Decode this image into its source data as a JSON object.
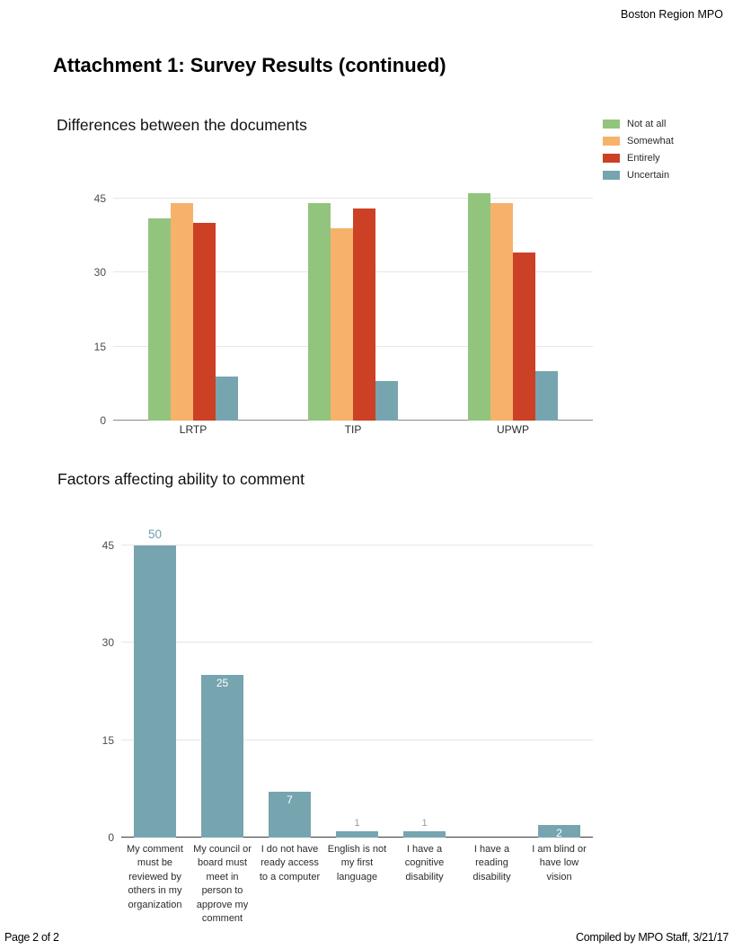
{
  "header": {
    "right_text": "Boston Region MPO"
  },
  "page_title": "Attachment 1: Survey Results (continued)",
  "footer": {
    "left_text": "Page 2 of 2",
    "right_text": "Compiled by MPO Staff, 3/21/17"
  },
  "palette": {
    "green": "#93c47d",
    "orange": "#f6b26b",
    "red": "#cc4125",
    "blue_gray": "#76a5af",
    "gridline": "#e6e6e6",
    "axis_baseline_chart1": "#8a8a8a",
    "axis_baseline_chart2": "#3a3a3a",
    "value_label_inside": "#ffffff",
    "value_label_above": "#9a9a9a",
    "value_label_accent": "#6d9eac"
  },
  "chart_data": [
    {
      "type": "bar",
      "title": "Differences between the documents",
      "categories": [
        "LRTP",
        "TIP",
        "UPWP"
      ],
      "series": [
        {
          "name": "Not at all",
          "color": "#93c47d",
          "values": [
            41,
            44,
            46
          ]
        },
        {
          "name": "Somewhat",
          "color": "#f6b26b",
          "values": [
            44,
            39,
            44
          ]
        },
        {
          "name": "Entirely",
          "color": "#cc4125",
          "values": [
            40,
            43,
            34
          ]
        },
        {
          "name": "Uncertain",
          "color": "#76a5af",
          "values": [
            9,
            8,
            10
          ]
        }
      ],
      "yticks": [
        0,
        15,
        30,
        45
      ],
      "ylim": [
        0,
        48
      ],
      "grid": true,
      "legend_position": "top-right"
    },
    {
      "type": "bar",
      "title": "Factors affecting ability to comment",
      "categories": [
        "My comment must be reviewed by others in my organization",
        "My council or board must meet in person to approve my comment",
        "I do not have ready access to a computer",
        "English is not my first language",
        "I have a cognitive disability",
        "I have a reading disability",
        "I am blind or have low vision"
      ],
      "series": [
        {
          "name": "Responses",
          "color": "#76a5af",
          "values": [
            50,
            25,
            7,
            1,
            1,
            0,
            2
          ]
        }
      ],
      "data_labels": [
        "50",
        "25",
        "7",
        "1",
        "1",
        "",
        "2"
      ],
      "yticks": [
        0,
        15,
        30,
        45
      ],
      "ylim": [
        0,
        45
      ],
      "clip_at_ymax": true,
      "grid": true,
      "legend_position": "none"
    }
  ]
}
